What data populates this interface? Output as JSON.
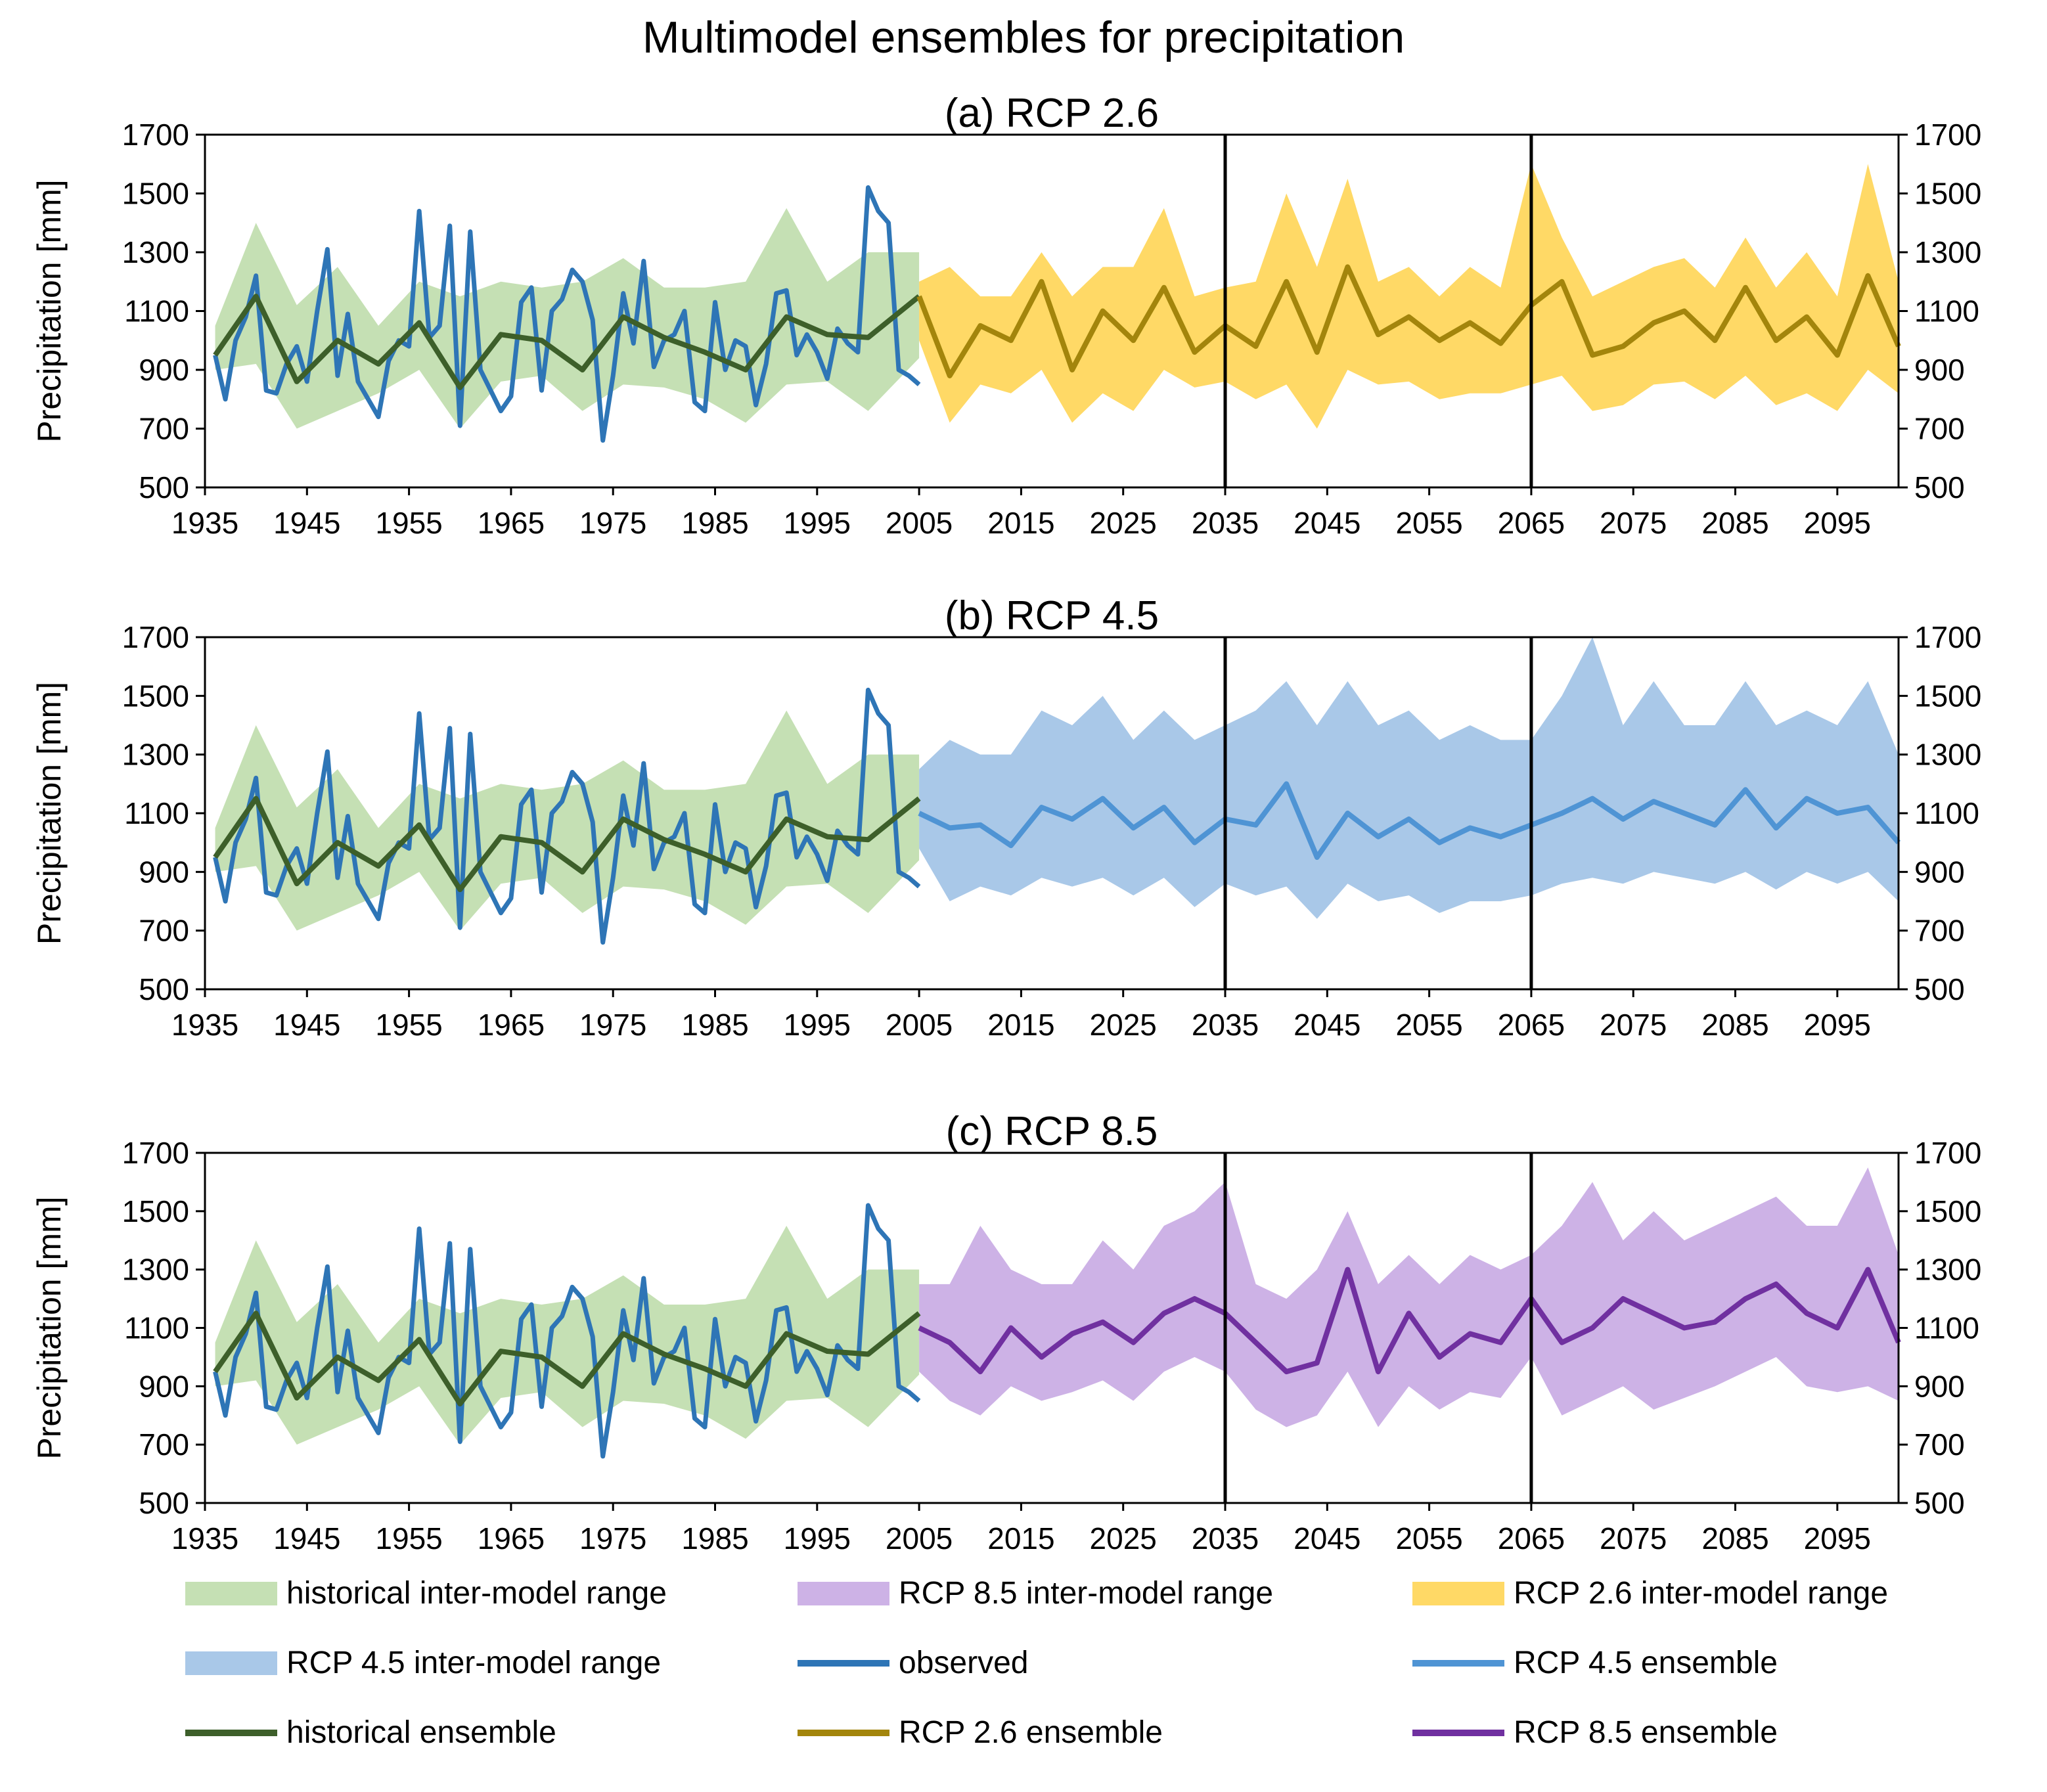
{
  "title": "Multimodel ensembles for precipitation",
  "colors": {
    "hist_band": "#c5e0b4",
    "rcp26_band": "#ffd966",
    "rcp45_band": "#a9c8e8",
    "rcp85_band": "#cdb2e6",
    "observed": "#2e75b6",
    "hist_ens": "#3d5f2a",
    "rcp26_ens": "#a3850c",
    "rcp45_ens": "#4f94d4",
    "rcp85_ens": "#7030a0",
    "axis": "#000000"
  },
  "legend": [
    {
      "label": "historical inter-model range",
      "kind": "area",
      "color_key": "hist_band"
    },
    {
      "label": "RCP 8.5 inter-model range",
      "kind": "area",
      "color_key": "rcp85_band"
    },
    {
      "label": "RCP 2.6 inter-model range",
      "kind": "area",
      "color_key": "rcp26_band"
    },
    {
      "label": "RCP 4.5 inter-model range",
      "kind": "area",
      "color_key": "rcp45_band"
    },
    {
      "label": "observed",
      "kind": "line",
      "color_key": "observed"
    },
    {
      "label": "RCP 4.5 ensemble",
      "kind": "line",
      "color_key": "rcp45_ens"
    },
    {
      "label": "historical ensemble",
      "kind": "line",
      "color_key": "hist_ens"
    },
    {
      "label": "RCP 2.6 ensemble",
      "kind": "line",
      "color_key": "rcp26_ens"
    },
    {
      "label": "RCP 8.5 ensemble",
      "kind": "line",
      "color_key": "rcp85_ens"
    }
  ],
  "chart_data": {
    "type": "line",
    "ylabel": "Precipitation [mm]",
    "ylim": [
      500,
      1700
    ],
    "yticks": [
      500,
      700,
      900,
      1100,
      1300,
      1500,
      1700
    ],
    "xlim": [
      1935,
      2101
    ],
    "xticks": [
      1935,
      1945,
      1955,
      1965,
      1975,
      1985,
      1995,
      2005,
      2015,
      2025,
      2035,
      2045,
      2055,
      2065,
      2075,
      2085,
      2095
    ],
    "vertical_markers": [
      2035,
      2065
    ],
    "historical": {
      "years": [
        1936,
        1940,
        1944,
        1948,
        1952,
        1956,
        1960,
        1964,
        1968,
        1972,
        1976,
        1980,
        1984,
        1988,
        1992,
        1996,
        2000,
        2005
      ],
      "ensemble": [
        950,
        1150,
        860,
        1000,
        920,
        1060,
        840,
        1020,
        1000,
        900,
        1080,
        1010,
        960,
        900,
        1080,
        1020,
        1010,
        1150
      ],
      "lower": [
        900,
        920,
        700,
        760,
        820,
        900,
        700,
        860,
        880,
        760,
        850,
        840,
        800,
        720,
        850,
        860,
        760,
        940
      ],
      "upper": [
        1050,
        1400,
        1120,
        1250,
        1050,
        1200,
        1150,
        1200,
        1180,
        1200,
        1280,
        1180,
        1180,
        1200,
        1450,
        1200,
        1300,
        1300
      ]
    },
    "observed": {
      "years": [
        1936,
        1937,
        1938,
        1939,
        1940,
        1941,
        1942,
        1943,
        1944,
        1945,
        1946,
        1947,
        1948,
        1949,
        1950,
        1951,
        1952,
        1953,
        1954,
        1955,
        1956,
        1957,
        1958,
        1959,
        1960,
        1961,
        1962,
        1963,
        1964,
        1965,
        1966,
        1967,
        1968,
        1969,
        1970,
        1971,
        1972,
        1973,
        1974,
        1975,
        1976,
        1977,
        1978,
        1979,
        1980,
        1981,
        1982,
        1983,
        1984,
        1985,
        1986,
        1987,
        1988,
        1989,
        1990,
        1991,
        1992,
        1993,
        1994,
        1995,
        1996,
        1997,
        1998,
        1999,
        2000,
        2001,
        2002,
        2003,
        2004,
        2005
      ],
      "values": [
        950,
        800,
        1000,
        1080,
        1220,
        830,
        820,
        920,
        980,
        860,
        1100,
        1310,
        880,
        1090,
        860,
        800,
        740,
        930,
        1000,
        980,
        1440,
        1010,
        1050,
        1390,
        710,
        1370,
        900,
        830,
        760,
        810,
        1130,
        1180,
        830,
        1100,
        1140,
        1240,
        1200,
        1070,
        660,
        880,
        1160,
        990,
        1270,
        910,
        1000,
        1020,
        1100,
        790,
        760,
        1130,
        900,
        1000,
        980,
        780,
        920,
        1160,
        1170,
        950,
        1020,
        960,
        870,
        1040,
        990,
        960,
        1520,
        1440,
        1400,
        900,
        880,
        850
      ]
    },
    "rcp26": {
      "years": [
        2005,
        2008,
        2011,
        2014,
        2017,
        2020,
        2023,
        2026,
        2029,
        2032,
        2035,
        2038,
        2041,
        2044,
        2047,
        2050,
        2053,
        2056,
        2059,
        2062,
        2065,
        2068,
        2071,
        2074,
        2077,
        2080,
        2083,
        2086,
        2089,
        2092,
        2095,
        2098,
        2101
      ],
      "ensemble": [
        1150,
        880,
        1050,
        1000,
        1200,
        900,
        1100,
        1000,
        1180,
        960,
        1050,
        980,
        1200,
        960,
        1250,
        1020,
        1080,
        1000,
        1060,
        990,
        1120,
        1200,
        950,
        980,
        1060,
        1100,
        1000,
        1180,
        1000,
        1080,
        950,
        1220,
        980
      ],
      "lower": [
        1000,
        720,
        850,
        820,
        900,
        720,
        820,
        760,
        900,
        840,
        860,
        800,
        850,
        700,
        900,
        850,
        860,
        800,
        820,
        820,
        850,
        880,
        760,
        780,
        850,
        860,
        800,
        880,
        780,
        820,
        760,
        900,
        820
      ],
      "upper": [
        1200,
        1250,
        1150,
        1150,
        1300,
        1150,
        1250,
        1250,
        1450,
        1150,
        1180,
        1200,
        1500,
        1250,
        1550,
        1200,
        1250,
        1150,
        1250,
        1180,
        1600,
        1350,
        1150,
        1200,
        1250,
        1280,
        1180,
        1350,
        1180,
        1300,
        1150,
        1600,
        1200
      ]
    },
    "rcp45": {
      "years": [
        2005,
        2008,
        2011,
        2014,
        2017,
        2020,
        2023,
        2026,
        2029,
        2032,
        2035,
        2038,
        2041,
        2044,
        2047,
        2050,
        2053,
        2056,
        2059,
        2062,
        2065,
        2068,
        2071,
        2074,
        2077,
        2080,
        2083,
        2086,
        2089,
        2092,
        2095,
        2098,
        2101
      ],
      "ensemble": [
        1100,
        1050,
        1060,
        990,
        1120,
        1080,
        1150,
        1050,
        1120,
        1000,
        1080,
        1060,
        1200,
        950,
        1100,
        1020,
        1080,
        1000,
        1050,
        1020,
        1060,
        1100,
        1150,
        1080,
        1140,
        1100,
        1060,
        1180,
        1050,
        1150,
        1100,
        1120,
        1000
      ],
      "lower": [
        980,
        800,
        850,
        820,
        880,
        850,
        880,
        820,
        880,
        780,
        860,
        820,
        850,
        740,
        860,
        800,
        820,
        760,
        800,
        800,
        820,
        860,
        880,
        860,
        900,
        880,
        860,
        900,
        840,
        900,
        860,
        900,
        800
      ],
      "upper": [
        1250,
        1350,
        1300,
        1300,
        1450,
        1400,
        1500,
        1350,
        1450,
        1350,
        1400,
        1450,
        1550,
        1400,
        1550,
        1400,
        1450,
        1350,
        1400,
        1350,
        1350,
        1500,
        1700,
        1400,
        1550,
        1400,
        1400,
        1550,
        1400,
        1450,
        1400,
        1550,
        1300
      ]
    },
    "rcp85": {
      "years": [
        2005,
        2008,
        2011,
        2014,
        2017,
        2020,
        2023,
        2026,
        2029,
        2032,
        2035,
        2038,
        2041,
        2044,
        2047,
        2050,
        2053,
        2056,
        2059,
        2062,
        2065,
        2068,
        2071,
        2074,
        2077,
        2080,
        2083,
        2086,
        2089,
        2092,
        2095,
        2098,
        2101
      ],
      "ensemble": [
        1100,
        1050,
        950,
        1100,
        1000,
        1080,
        1120,
        1050,
        1150,
        1200,
        1150,
        1050,
        950,
        980,
        1300,
        950,
        1150,
        1000,
        1080,
        1050,
        1200,
        1050,
        1100,
        1200,
        1150,
        1100,
        1120,
        1200,
        1250,
        1150,
        1100,
        1300,
        1050
      ],
      "lower": [
        950,
        850,
        800,
        900,
        850,
        880,
        920,
        850,
        950,
        1000,
        950,
        820,
        760,
        800,
        950,
        760,
        900,
        820,
        880,
        860,
        1000,
        800,
        850,
        900,
        820,
        860,
        900,
        950,
        1000,
        900,
        880,
        900,
        850
      ],
      "upper": [
        1250,
        1250,
        1450,
        1300,
        1250,
        1250,
        1400,
        1300,
        1450,
        1500,
        1600,
        1250,
        1200,
        1300,
        1500,
        1250,
        1350,
        1250,
        1350,
        1300,
        1350,
        1450,
        1600,
        1400,
        1500,
        1400,
        1450,
        1500,
        1550,
        1450,
        1450,
        1650,
        1350
      ]
    },
    "panels": [
      {
        "id": "a",
        "title": "(a) RCP 2.6",
        "scenario": "rcp26",
        "band_color_key": "rcp26_band",
        "line_color_key": "rcp26_ens"
      },
      {
        "id": "b",
        "title": "(b) RCP 4.5",
        "scenario": "rcp45",
        "band_color_key": "rcp45_band",
        "line_color_key": "rcp45_ens"
      },
      {
        "id": "c",
        "title": "(c) RCP 8.5",
        "scenario": "rcp85",
        "band_color_key": "rcp85_band",
        "line_color_key": "rcp85_ens"
      }
    ]
  }
}
